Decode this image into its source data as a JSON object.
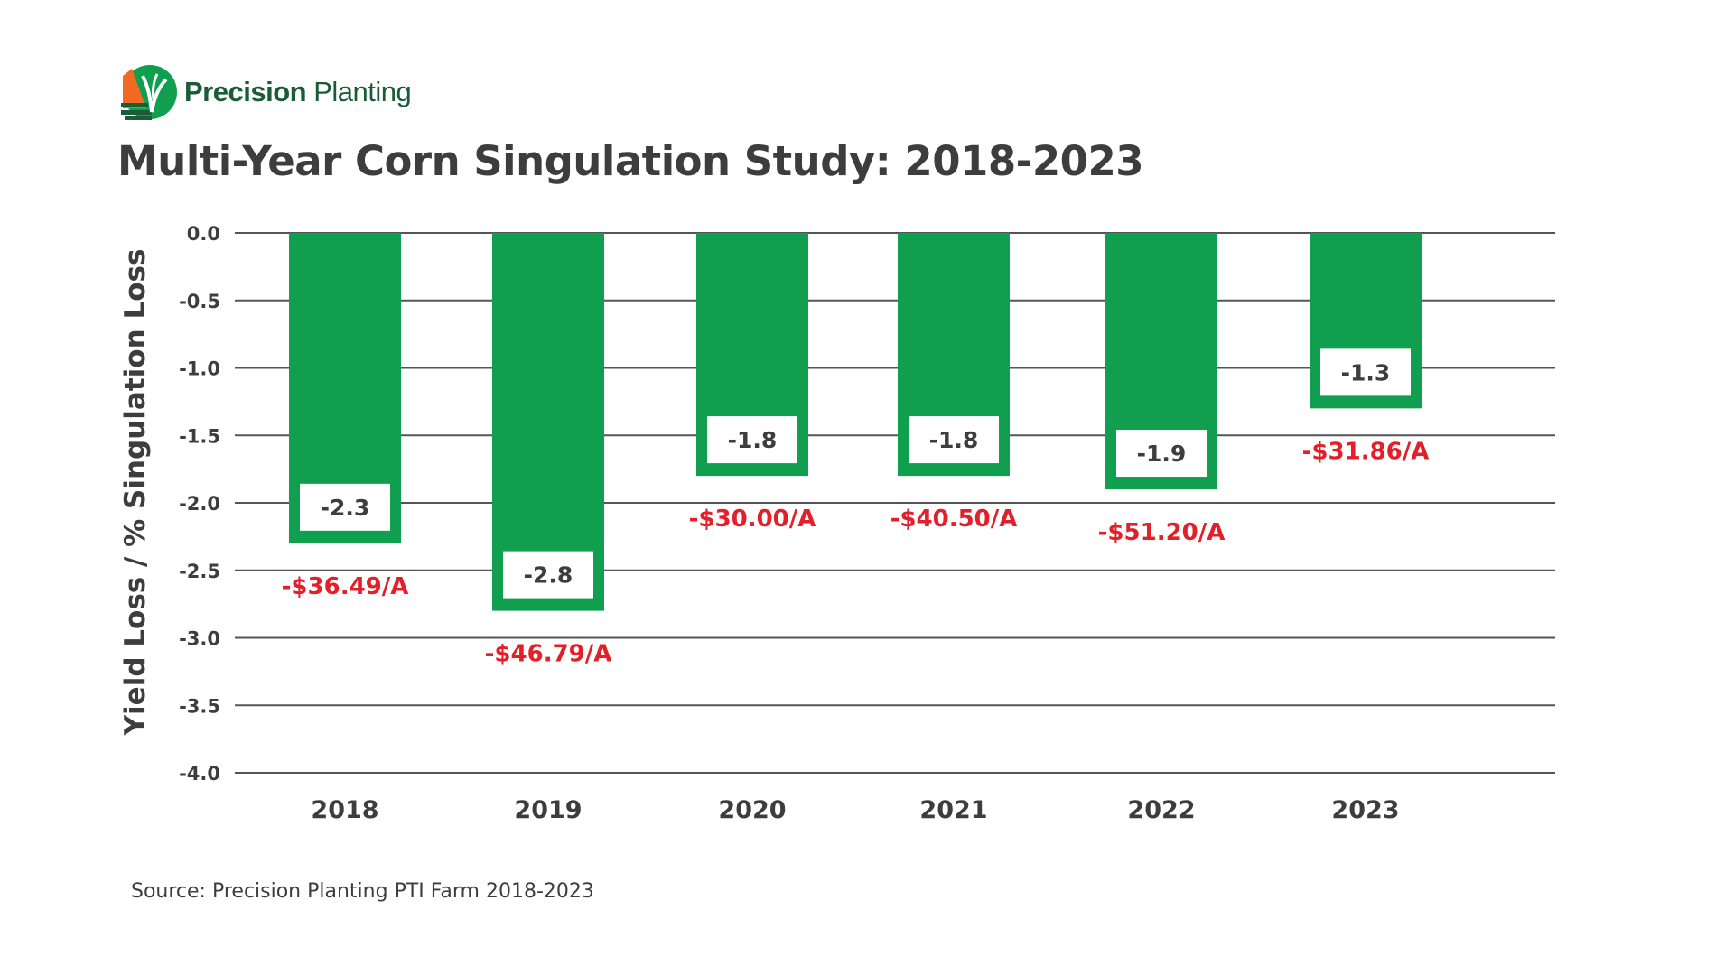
{
  "logo": {
    "brand_bold": "Precision",
    "brand_light": "Planting"
  },
  "chart_data": {
    "type": "bar",
    "title": "Multi-Year Corn Singulation Study: 2018-2023",
    "ylabel": "Yield Loss / % Singulation Loss",
    "xlabel": "",
    "categories": [
      "2018",
      "2019",
      "2020",
      "2021",
      "2022",
      "2023"
    ],
    "values": [
      -2.3,
      -2.8,
      -1.8,
      -1.8,
      -1.9,
      -1.3
    ],
    "value_labels": [
      "-2.3",
      "-2.8",
      "-1.8",
      "-1.8",
      "-1.9",
      "-1.3"
    ],
    "cost_labels": [
      "-$36.49/A",
      "-$46.79/A",
      "-$30.00/A",
      "-$40.50/A",
      "-$51.20/A",
      "-$31.86/A"
    ],
    "ylim": [
      -4.0,
      0.0
    ],
    "yticks": [
      "0.0",
      "-0.5",
      "-1.0",
      "-1.5",
      "-2.0",
      "-2.5",
      "-3.0",
      "-3.5",
      "-4.0"
    ],
    "grid": true,
    "colors": {
      "bar": "#0f9f4f",
      "cost": "#e3202a",
      "text": "#3d3d3d",
      "grid": "#555555"
    },
    "source": "Source: Precision Planting PTI Farm 2018-2023"
  }
}
